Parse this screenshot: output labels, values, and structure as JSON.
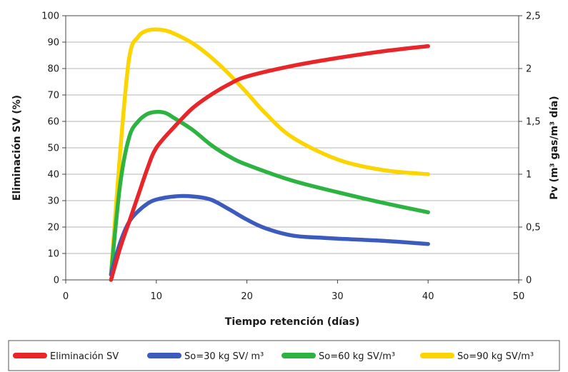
{
  "chart_data": {
    "type": "line",
    "xlabel": "Tiempo retención (días)",
    "ylabel_left": "Eliminación SV (%)",
    "ylabel_right": "Pv (m³ gas/m³ día)",
    "xlim": [
      0,
      50
    ],
    "ylim_left": [
      0,
      100
    ],
    "ylim_right": [
      0,
      2.5
    ],
    "x_ticks": [
      "0",
      "10",
      "20",
      "30",
      "40",
      "50"
    ],
    "y_left_ticks": [
      "0",
      "10",
      "20",
      "30",
      "40",
      "50",
      "60",
      "70",
      "80",
      "90",
      "100"
    ],
    "y_right_ticks": [
      "0",
      "0,5",
      "1",
      "1,5",
      "2",
      "2,5"
    ],
    "grid": "horizontal",
    "legend_position": "bottom",
    "series": [
      {
        "name": "Eliminación SV",
        "color": "#e8262a",
        "axis": "left",
        "x": [
          5,
          6,
          7,
          8,
          9,
          10,
          12,
          14,
          16,
          18,
          20,
          25,
          30,
          35,
          40
        ],
        "y": [
          0,
          12,
          22,
          32,
          42,
          50,
          58,
          65,
          70,
          74,
          77,
          81,
          84,
          86.5,
          88.5
        ]
      },
      {
        "name": "So=30 kg SV/ m³",
        "color": "#3d5bbd",
        "axis": "right",
        "x": [
          5,
          6,
          7,
          8,
          9,
          10,
          12,
          14,
          16,
          18,
          20,
          22,
          25,
          28,
          30,
          35,
          40
        ],
        "y": [
          0.05,
          0.35,
          0.55,
          0.65,
          0.72,
          0.76,
          0.79,
          0.79,
          0.76,
          0.67,
          0.57,
          0.49,
          0.42,
          0.4,
          0.39,
          0.37,
          0.34
        ]
      },
      {
        "name": "So=60 kg SV/m³",
        "color": "#2db342",
        "axis": "right",
        "x": [
          5,
          6,
          7,
          8,
          9,
          10,
          11,
          12,
          14,
          16,
          18,
          20,
          25,
          30,
          35,
          40
        ],
        "y": [
          0.05,
          0.9,
          1.35,
          1.5,
          1.57,
          1.59,
          1.58,
          1.53,
          1.42,
          1.28,
          1.17,
          1.09,
          0.94,
          0.83,
          0.73,
          0.64
        ]
      },
      {
        "name": "So=90 kg SV/m³",
        "color": "#fcd500",
        "axis": "right",
        "x": [
          5,
          6,
          7,
          8,
          9,
          10,
          11,
          12,
          14,
          16,
          18,
          20,
          22,
          25,
          30,
          35,
          40
        ],
        "y": [
          0.05,
          1.2,
          2.1,
          2.3,
          2.36,
          2.37,
          2.36,
          2.33,
          2.24,
          2.11,
          1.95,
          1.77,
          1.58,
          1.35,
          1.14,
          1.04,
          1.0
        ]
      }
    ]
  }
}
